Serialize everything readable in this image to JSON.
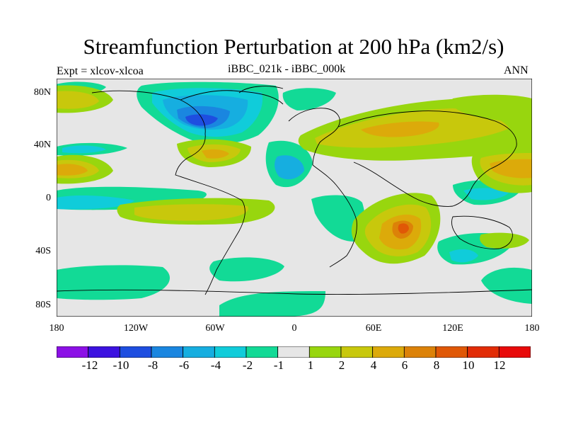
{
  "title": "Streamfunction Perturbation at 200 hPa (km2/s)",
  "left_subtitle": "Expt = xlcov-xlcoa",
  "center_subtitle": "iBBC_021k - iBBC_000k",
  "right_subtitle": "ANN",
  "lat_labels": [
    "80N",
    "40N",
    "0",
    "40S",
    "80S"
  ],
  "lon_labels": [
    "180",
    "120W",
    "60W",
    "0",
    "60E",
    "120E",
    "180"
  ],
  "colorbar": {
    "labels": [
      "-12",
      "-10",
      "-8",
      "-6",
      "-4",
      "-2",
      "-1",
      "1",
      "2",
      "4",
      "6",
      "8",
      "10",
      "12"
    ],
    "colors": [
      "#8c10e6",
      "#3c12e0",
      "#1e4ee0",
      "#1a86e0",
      "#16aee0",
      "#10ccda",
      "#12da96",
      "#e6e6e6",
      "#98d60e",
      "#c8c80c",
      "#dcaa0a",
      "#dc8208",
      "#e05806",
      "#e22c06",
      "#e80a0a"
    ]
  },
  "colors": {
    "background": "#e6e6e6",
    "coastline": "#000000"
  }
}
